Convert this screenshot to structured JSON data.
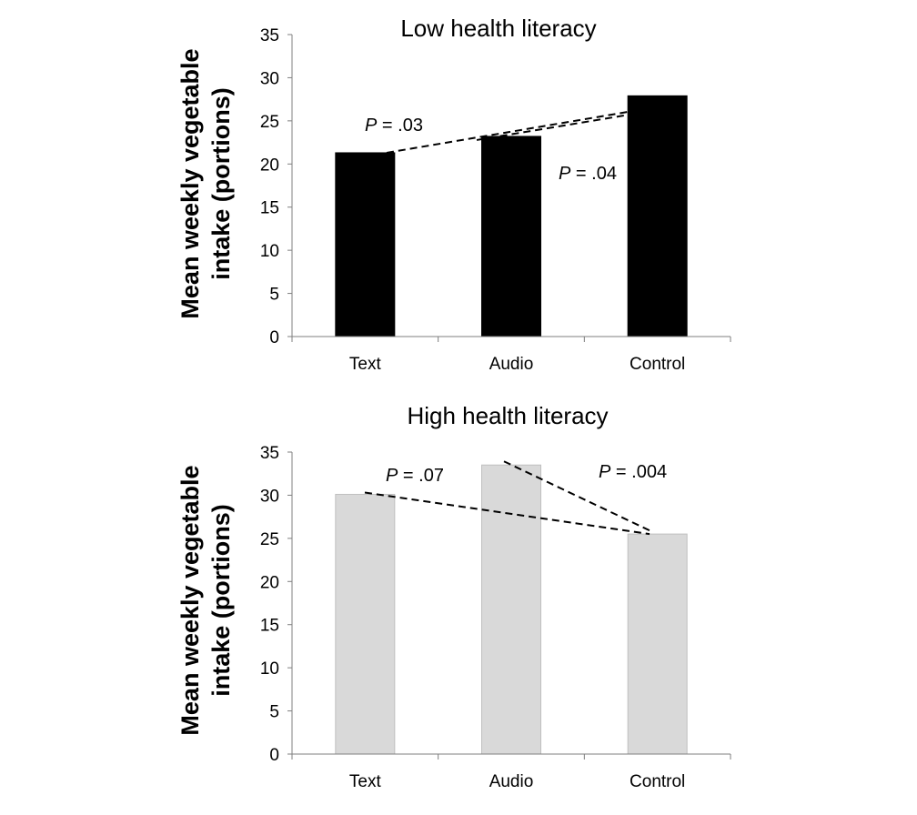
{
  "chart_data": [
    {
      "type": "bar",
      "title": "Low health literacy",
      "ylabel_line1": "Mean weekly vegetable",
      "ylabel_line2": "intake (portions)",
      "categories": [
        "Text",
        "Audio",
        "Control"
      ],
      "values": [
        21.3,
        23.2,
        27.9
      ],
      "ylim": [
        0,
        35
      ],
      "yticks": [
        0,
        5,
        10,
        15,
        20,
        25,
        30,
        35
      ],
      "bar_color": "#000000",
      "annotations": [
        {
          "label": "P",
          "text": " = .03",
          "from": "Text",
          "to": "Control"
        },
        {
          "label": "P",
          "text": " = .04",
          "from": "Audio",
          "to": "Control"
        }
      ]
    },
    {
      "type": "bar",
      "title": "High health literacy",
      "ylabel_line1": "Mean weekly vegetable",
      "ylabel_line2": "intake (portions)",
      "categories": [
        "Text",
        "Audio",
        "Control"
      ],
      "values": [
        30.1,
        33.5,
        25.5
      ],
      "ylim": [
        0,
        35
      ],
      "yticks": [
        0,
        5,
        10,
        15,
        20,
        25,
        30,
        35
      ],
      "bar_color": "#d9d9d9",
      "annotations": [
        {
          "label": "P",
          "text": " = .07",
          "from": "Text",
          "to": "Control"
        },
        {
          "label": "P",
          "text": " = .004",
          "from": "Audio",
          "to": "Control"
        }
      ]
    }
  ]
}
